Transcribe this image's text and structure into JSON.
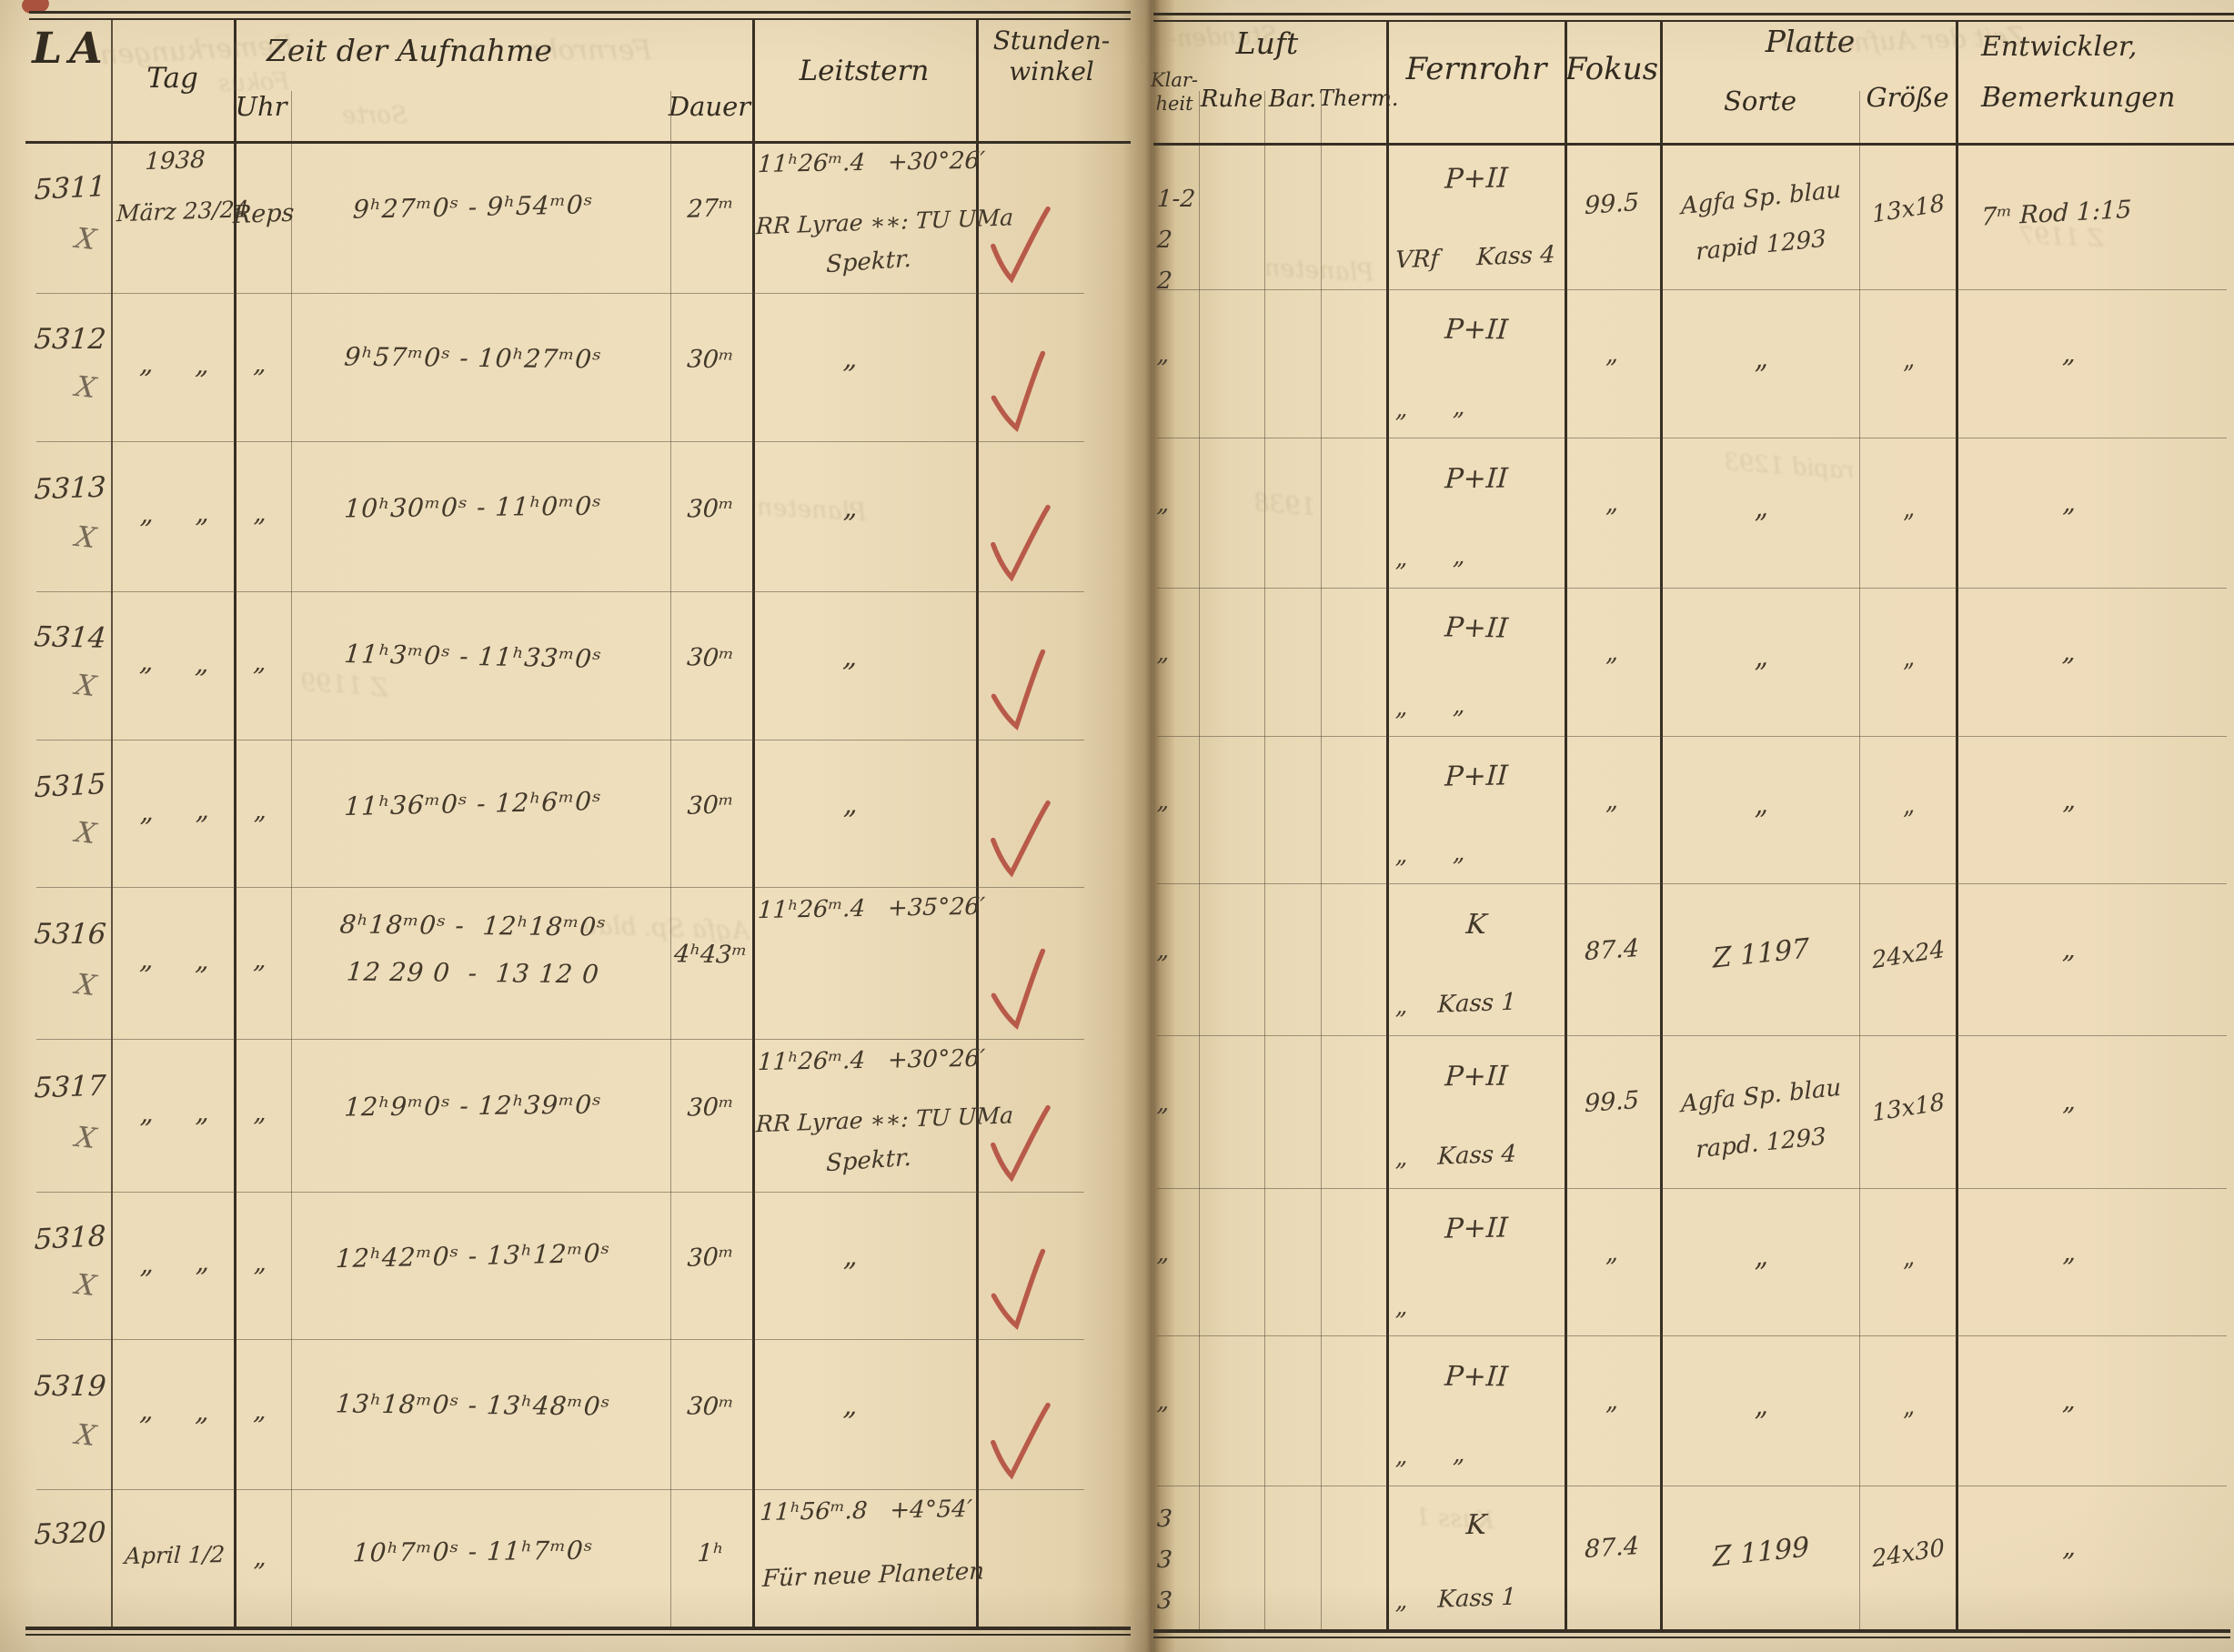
{
  "left_header": {
    "la": "LA",
    "tag": "Tag",
    "zeit": "Zeit der Aufnahme",
    "uhr": "Uhr",
    "dauer": "Dauer",
    "leitstern": "Leitstern",
    "stunden": "Stunden-",
    "winkel": "winkel"
  },
  "right_header": {
    "luft": "Luft",
    "klar1": "Klar-",
    "klar2": "heit",
    "ruhe": "Ruhe",
    "bar": "Bar.",
    "therm": "Therm.",
    "fernrohr": "Fernrohr",
    "fokus": "Fokus",
    "platte": "Platte",
    "sorte": "Sorte",
    "groesse": "Größe",
    "entwickler": "Entwickler,",
    "bemerkungen": "Bemerkungen"
  },
  "colors": {
    "check": "#b2493b",
    "ink": "#42382a",
    "print": "#322b20",
    "pencil": "#766a58"
  },
  "rows": [
    {
      "id": "5311",
      "x_mark": true,
      "year": "1938",
      "tag": "März 23/24",
      "uhr": "Reps",
      "zeit": [
        "9ʰ27ᵐ0ˢ - 9ʰ54ᵐ0ˢ"
      ],
      "dauer": "27ᵐ",
      "leit_coord": "11ʰ26ᵐ.4   +30°26′",
      "leit_star": "RR Lyrae ∗∗: TU UMa",
      "leit_note": "Spektr.",
      "check": true,
      "klarheit": [
        "1-2",
        "2",
        "2"
      ],
      "fern1": "P+II",
      "fern2": "VRf     Kass 4",
      "fokus": "99.5",
      "sorte": [
        "Agfa Sp. blau",
        "rapid 1293"
      ],
      "groesse": "13x18",
      "bem": "7ᵐ Rod 1:15"
    },
    {
      "id": "5312",
      "x_mark": true,
      "tag": "„     „",
      "uhr": "„",
      "zeit": [
        "9ʰ57ᵐ0ˢ - 10ʰ27ᵐ0ˢ"
      ],
      "dauer": "30ᵐ",
      "leit_mid": "„",
      "check": true,
      "klarheit": [
        "„"
      ],
      "fern1": "P+II",
      "fern2": "„      „",
      "fokus": "„",
      "sorte": [
        "„"
      ],
      "groesse": "„",
      "bem": "„"
    },
    {
      "id": "5313",
      "x_mark": true,
      "tag": "„     „",
      "uhr": "„",
      "zeit": [
        "10ʰ30ᵐ0ˢ - 11ʰ0ᵐ0ˢ"
      ],
      "dauer": "30ᵐ",
      "leit_mid": "„",
      "check": true,
      "klarheit": [
        "„"
      ],
      "fern1": "P+II",
      "fern2": "„      „",
      "fokus": "„",
      "sorte": [
        "„"
      ],
      "groesse": "„",
      "bem": "„"
    },
    {
      "id": "5314",
      "x_mark": true,
      "tag": "„     „",
      "uhr": "„",
      "zeit": [
        "11ʰ3ᵐ0ˢ - 11ʰ33ᵐ0ˢ"
      ],
      "dauer": "30ᵐ",
      "leit_mid": "„",
      "check": true,
      "klarheit": [
        "„"
      ],
      "fern1": "P+II",
      "fern2": "„      „",
      "fokus": "„",
      "sorte": [
        "„"
      ],
      "groesse": "„",
      "bem": "„"
    },
    {
      "id": "5315",
      "x_mark": true,
      "tag": "„     „",
      "uhr": "„",
      "zeit": [
        "11ʰ36ᵐ0ˢ - 12ʰ6ᵐ0ˢ"
      ],
      "dauer": "30ᵐ",
      "leit_mid": "„",
      "check": true,
      "klarheit": [
        "„"
      ],
      "fern1": "P+II",
      "fern2": "„      „",
      "fokus": "„",
      "sorte": [
        "„"
      ],
      "groesse": "„",
      "bem": "„"
    },
    {
      "id": "5316",
      "x_mark": true,
      "tag": "„     „",
      "uhr": "„",
      "zeit": [
        "8ʰ18ᵐ0ˢ -  12ʰ18ᵐ0ˢ",
        "12 29 0  -  13 12 0"
      ],
      "dauer": "4ʰ43ᵐ",
      "leit_coord": "11ʰ26ᵐ.4   +35°26′",
      "check": true,
      "klarheit": [
        "„"
      ],
      "fern1": "K",
      "fern2": "„    Kass 1",
      "fokus": "87.4",
      "sorte": [
        "Z 1197"
      ],
      "groesse": "24x24",
      "bem": "„"
    },
    {
      "id": "5317",
      "x_mark": true,
      "tag": "„     „",
      "uhr": "„",
      "zeit": [
        "12ʰ9ᵐ0ˢ - 12ʰ39ᵐ0ˢ"
      ],
      "dauer": "30ᵐ",
      "leit_coord": "11ʰ26ᵐ.4   +30°26′",
      "leit_star": "RR Lyrae ∗∗: TU UMa",
      "leit_note": "Spektr.",
      "check": true,
      "klarheit": [
        "„"
      ],
      "fern1": "P+II",
      "fern2": "„    Kass 4",
      "fokus": "99.5",
      "sorte": [
        "Agfa Sp. blau",
        "rapd. 1293"
      ],
      "groesse": "13x18",
      "bem": "„"
    },
    {
      "id": "5318",
      "x_mark": true,
      "tag": "„     „",
      "uhr": "„",
      "zeit": [
        "12ʰ42ᵐ0ˢ - 13ʰ12ᵐ0ˢ"
      ],
      "dauer": "30ᵐ",
      "leit_mid": "„",
      "check": true,
      "klarheit": [
        "„"
      ],
      "fern1": "P+II",
      "fern2": "„",
      "fokus": "„",
      "sorte": [
        "„"
      ],
      "groesse": "„",
      "bem": "„"
    },
    {
      "id": "5319",
      "x_mark": true,
      "tag": "„     „",
      "uhr": "„",
      "zeit": [
        "13ʰ18ᵐ0ˢ - 13ʰ48ᵐ0ˢ"
      ],
      "dauer": "30ᵐ",
      "leit_mid": "„",
      "check": true,
      "klarheit": [
        "„"
      ],
      "fern1": "P+II",
      "fern2": "„      „",
      "fokus": "„",
      "sorte": [
        "„"
      ],
      "groesse": "„",
      "bem": "„"
    },
    {
      "id": "5320",
      "x_mark": false,
      "tag": "April 1/2",
      "uhr": "„",
      "zeit": [
        "10ʰ7ᵐ0ˢ - 11ʰ7ᵐ0ˢ"
      ],
      "dauer": "1ʰ",
      "leit_coord": "11ʰ56ᵐ.8   +4°54′",
      "leit_note2": "Für neue Planeten",
      "check": false,
      "klarheit": [
        "3",
        "3",
        "3"
      ],
      "fern1": "K",
      "fern2": "„    Kass 1",
      "fokus": "87.4",
      "sorte": [
        "Z 1199"
      ],
      "groesse": "24x30",
      "bem": "„"
    }
  ],
  "ghosts": [
    "Bemerkungen",
    "Fokus",
    "Sorte",
    "Fernrohr",
    "Planeten",
    "Agfa Sp. blau",
    "Z 1199",
    "Planeten",
    "1938",
    "rapid 1293",
    "Kass 1",
    "Zeit der Aufnahme",
    "Stunden-",
    "Z 1197"
  ]
}
